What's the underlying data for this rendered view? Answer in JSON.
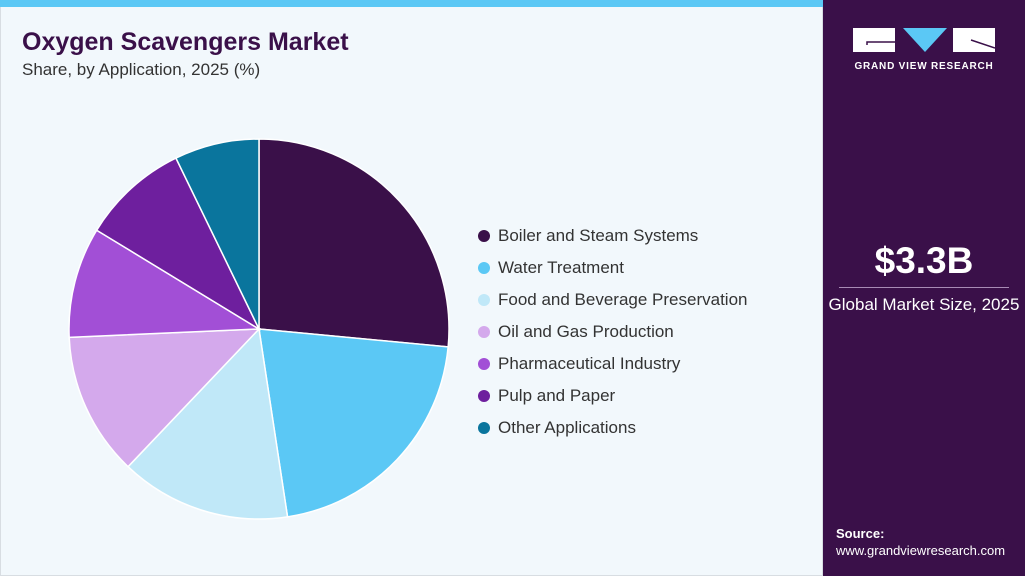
{
  "chart_data": {
    "type": "pie",
    "title": "Oxygen Scavengers Market",
    "subtitle": "Share, by Application, 2025 (%)",
    "legend_position": "right",
    "categories": [
      "Boiler and Steam Systems",
      "Water Treatment",
      "Food and Beverage Preservation",
      "Oil and Gas Production",
      "Pharmaceutical Industry",
      "Pulp and Paper",
      "Other Applications"
    ],
    "values": [
      26.5,
      21.1,
      14.5,
      12.2,
      9.4,
      9.1,
      7.2
    ],
    "colors": [
      "#3a1049",
      "#5bc8f5",
      "#c0e8f8",
      "#d4a9ec",
      "#a24fd6",
      "#6e1f9e",
      "#0a759d"
    ]
  },
  "sidebar": {
    "brand": "GRAND VIEW RESEARCH",
    "market_size": "$3.3B",
    "market_size_label": "Global Market Size, 2025",
    "source_label": "Source:",
    "source_url": "www.grandviewresearch.com"
  }
}
